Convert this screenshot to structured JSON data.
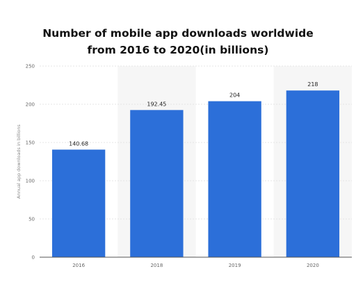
{
  "chart_data": {
    "type": "bar",
    "title_lines": [
      "Number of mobile app downloads worldwide",
      "from 2016 to 2020(in billions)"
    ],
    "categories": [
      "2016",
      "2018",
      "2019",
      "2020"
    ],
    "values": [
      140.68,
      192.45,
      204,
      218
    ],
    "data_labels": [
      "140.68",
      "192.45",
      "204",
      "218"
    ],
    "ylabel": "Annual app downloads in billions",
    "xlabel": "",
    "ylim": [
      0,
      250
    ],
    "yticks": [
      0,
      50,
      100,
      150,
      200,
      250
    ],
    "grid": true,
    "legend": "none",
    "colors": {
      "bar": "#2c6fd9",
      "alt_band": "#f6f6f6",
      "grid": "#dedede",
      "axis": "#555555"
    }
  }
}
